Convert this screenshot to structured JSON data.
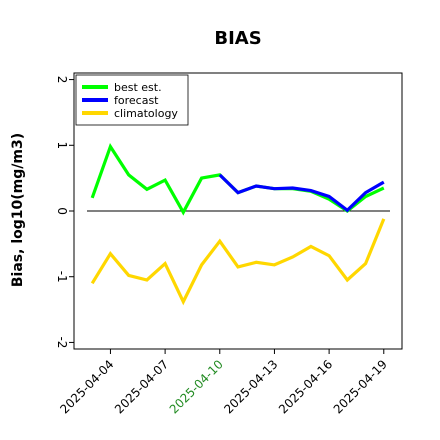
{
  "chart_data": {
    "type": "line",
    "title": "BIAS",
    "xlabel": "",
    "ylabel": "Bias, log10(mg/m3)",
    "ylim": [
      -2.1,
      2.1
    ],
    "xlim": [
      "2025-04-02",
      "2025-04-20"
    ],
    "yticks": [
      -2,
      -1,
      0,
      1,
      2
    ],
    "xticks": [
      "2025-04-04",
      "2025-04-07",
      "2025-04-10",
      "2025-04-13",
      "2025-04-16",
      "2025-04-19"
    ],
    "highlight_tick": "2025-04-10",
    "highlight_color": "#228b22",
    "reference_line": 0,
    "grid": false,
    "legend_position": "top-left",
    "series": [
      {
        "name": "best est.",
        "color": "#00ff00",
        "x": [
          "2025-04-03",
          "2025-04-04",
          "2025-04-05",
          "2025-04-06",
          "2025-04-07",
          "2025-04-08",
          "2025-04-09",
          "2025-04-10",
          "2025-04-11",
          "2025-04-12",
          "2025-04-13",
          "2025-04-14",
          "2025-04-15",
          "2025-04-16",
          "2025-04-17",
          "2025-04-18",
          "2025-04-19"
        ],
        "values": [
          0.2,
          0.98,
          0.55,
          0.33,
          0.47,
          -0.02,
          0.5,
          0.55,
          0.28,
          0.38,
          0.34,
          0.34,
          0.3,
          0.18,
          0.0,
          0.22,
          0.35
        ]
      },
      {
        "name": "forecast",
        "color": "#0000ff",
        "x": [
          "2025-04-10",
          "2025-04-11",
          "2025-04-12",
          "2025-04-13",
          "2025-04-14",
          "2025-04-15",
          "2025-04-16",
          "2025-04-17",
          "2025-04-18",
          "2025-04-19"
        ],
        "values": [
          0.55,
          0.28,
          0.38,
          0.34,
          0.35,
          0.31,
          0.22,
          0.01,
          0.28,
          0.44
        ]
      },
      {
        "name": "climatology",
        "color": "#ffd700",
        "x": [
          "2025-04-03",
          "2025-04-04",
          "2025-04-05",
          "2025-04-06",
          "2025-04-07",
          "2025-04-08",
          "2025-04-09",
          "2025-04-10",
          "2025-04-11",
          "2025-04-12",
          "2025-04-13",
          "2025-04-14",
          "2025-04-15",
          "2025-04-16",
          "2025-04-17",
          "2025-04-18",
          "2025-04-19"
        ],
        "values": [
          -1.1,
          -0.65,
          -0.98,
          -1.05,
          -0.8,
          -1.38,
          -0.82,
          -0.46,
          -0.85,
          -0.78,
          -0.82,
          -0.7,
          -0.54,
          -0.68,
          -1.05,
          -0.8,
          -0.12
        ]
      }
    ]
  }
}
